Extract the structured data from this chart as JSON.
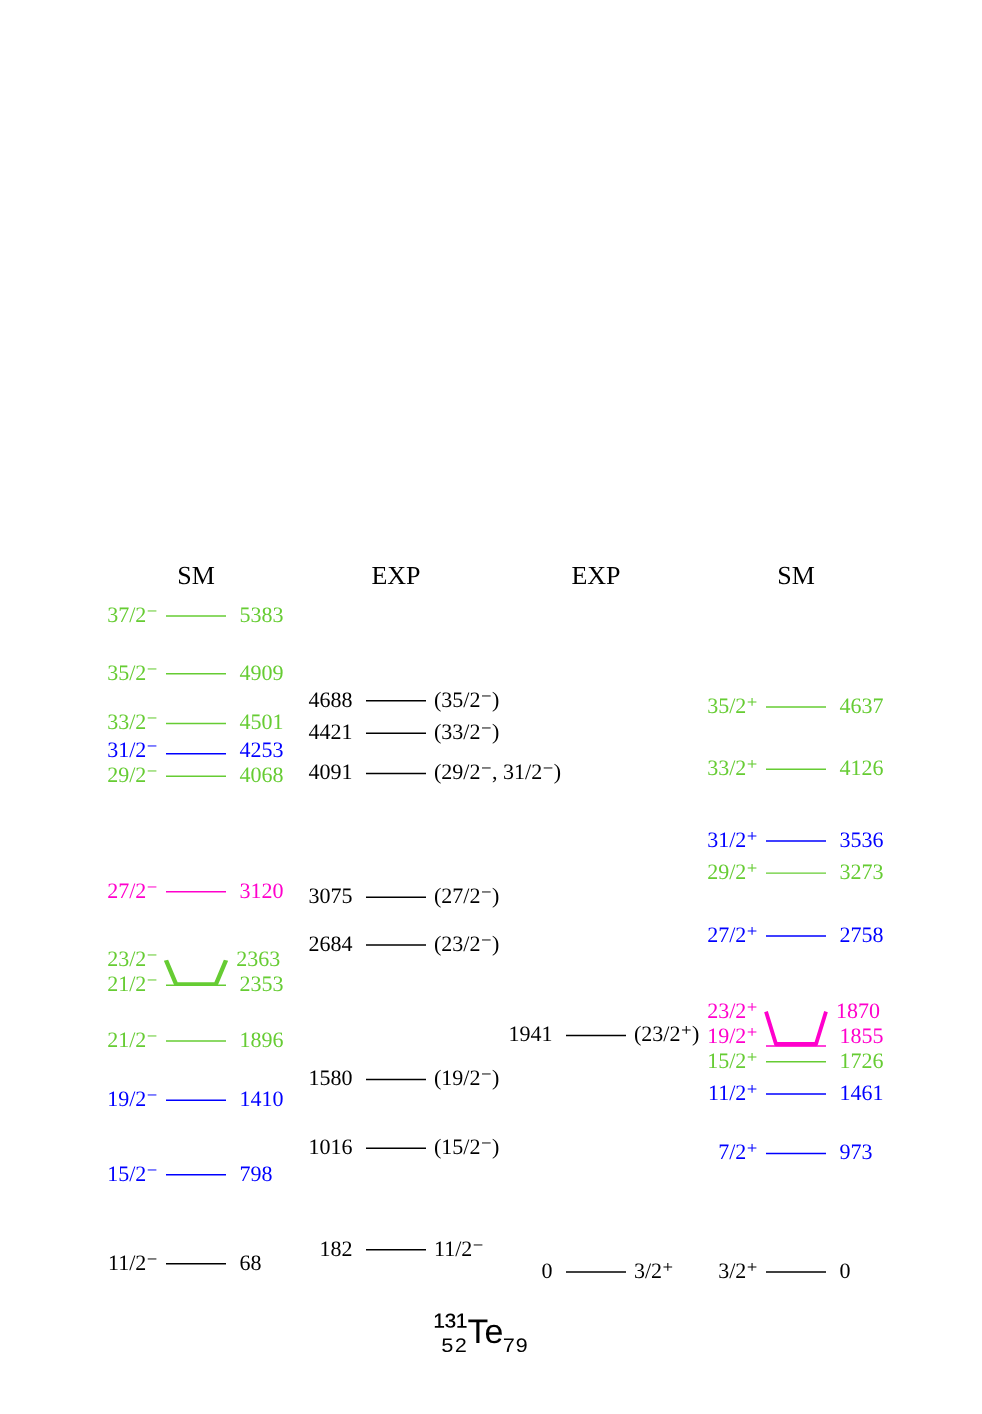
{
  "chart_data": {
    "type": "other",
    "title": "¹³¹₅₂Te₇₉",
    "categories": [
      "SM",
      "EXP",
      "EXP",
      "SM"
    ],
    "data_labels": true,
    "series": [
      {
        "values": [
          68,
          182,
          0,
          0
        ],
        "colors": [
          "#000000",
          "#000000",
          "#000000",
          "#000000"
        ]
      },
      {
        "values": [
          798,
          1016,
          1941,
          973
        ],
        "colors": [
          "#0000ff",
          "#000000",
          "#000000",
          "#0000ff"
        ]
      },
      {
        "values": [
          1410,
          1580,
          null,
          1461
        ],
        "colors": [
          "#0000ff",
          "#000000",
          null,
          "#0000ff"
        ]
      },
      {
        "values": [
          1896,
          2684,
          null,
          1726
        ],
        "colors": [
          "#66cc33",
          "#000000",
          null,
          "#66cc33"
        ]
      },
      {
        "values": [
          2353,
          3075,
          null,
          1855
        ],
        "colors": [
          "#66cc33",
          "#000000",
          null,
          "#ff00cc"
        ]
      },
      {
        "values": [
          2363,
          4091,
          null,
          1870
        ],
        "colors": [
          "#66cc33",
          "#000000",
          null,
          "#ff00cc"
        ]
      },
      {
        "values": [
          3120,
          4421,
          null,
          2758
        ],
        "colors": [
          "#ff00cc",
          "#000000",
          null,
          "#0000ff"
        ]
      },
      {
        "values": [
          4068,
          4688,
          null,
          3273
        ],
        "colors": [
          "#66cc33",
          "#000000",
          null,
          "#66cc33"
        ]
      },
      {
        "values": [
          4253,
          null,
          null,
          3536
        ],
        "colors": [
          "#0000ff",
          null,
          null,
          "#0000ff"
        ]
      },
      {
        "values": [
          4501,
          null,
          null,
          4126
        ],
        "colors": [
          "#66cc33",
          null,
          null,
          "#66cc33"
        ]
      },
      {
        "values": [
          4909,
          null,
          null,
          4637
        ],
        "colors": [
          "#66cc33",
          null,
          null,
          "#66cc33"
        ]
      },
      {
        "values": [
          5383,
          null,
          null,
          null
        ],
        "colors": [
          "#66cc33",
          null,
          null,
          null
        ]
      }
    ],
    "annotations": [
      "11/2⁻",
      "11/2⁻",
      "3/2⁺",
      "3/2⁺",
      "15/2⁻",
      "(15/2⁻)",
      "(23/2⁺)",
      "7/2⁺",
      "19/2⁻",
      "(19/2⁻)",
      "11/2⁺",
      "21/2⁻",
      "(23/2⁻)",
      "15/2⁺",
      "21/2⁻",
      "(27/2⁻)",
      "19/2⁺",
      "23/2⁻",
      "(29/2⁻, 31/2⁻)",
      "23/2⁺",
      "27/2⁻",
      "(33/2⁻)",
      "27/2⁺",
      "29/2⁻",
      "(35/2⁻)",
      "29/2⁺",
      "31/2⁻",
      "31/2⁺",
      "33/2⁻",
      "33/2⁺",
      "35/2⁻",
      "35/2⁺",
      "37/2⁻"
    ]
  }
}
